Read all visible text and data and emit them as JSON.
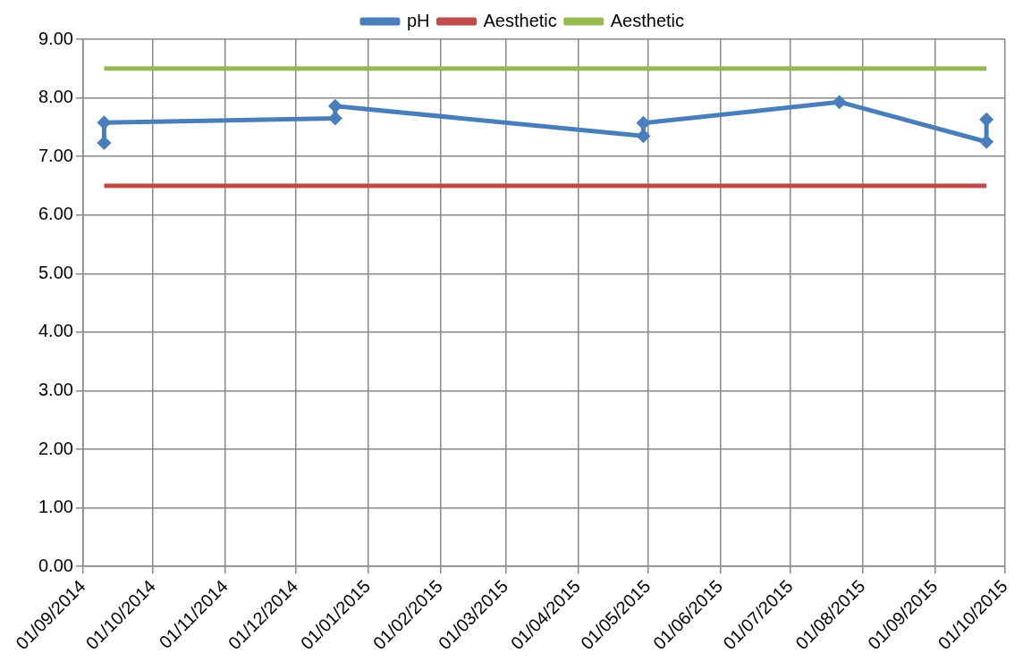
{
  "chart_data": {
    "type": "line",
    "x": [
      "2014-09-10",
      "2014-09-10",
      "2014-12-18",
      "2014-12-18",
      "2015-04-29",
      "2015-04-29",
      "2015-07-22",
      "2015-09-23",
      "2015-09-23"
    ],
    "series": [
      {
        "name": "pH",
        "color": "#4a7ebb",
        "values": [
          7.23,
          7.58,
          7.65,
          7.86,
          7.35,
          7.57,
          7.93,
          7.25,
          7.63
        ],
        "marker": "diamond"
      },
      {
        "name": "Aesthetic",
        "color": "#be4b48",
        "x": [
          "2014-09-10",
          "2015-09-23"
        ],
        "values": [
          6.5,
          6.5
        ],
        "marker": "none"
      },
      {
        "name": "Aesthetic",
        "color": "#98b954",
        "x": [
          "2014-09-10",
          "2015-09-23"
        ],
        "values": [
          8.5,
          8.5
        ],
        "marker": "none"
      }
    ],
    "xlim": [
      "2014-09-01",
      "2015-10-01"
    ],
    "xticks": [
      {
        "value": "2014-09-01",
        "label": "01/09/2014"
      },
      {
        "value": "2014-10-01",
        "label": "01/10/2014"
      },
      {
        "value": "2014-11-01",
        "label": "01/11/2014"
      },
      {
        "value": "2014-12-01",
        "label": "01/12/2014"
      },
      {
        "value": "2015-01-01",
        "label": "01/01/2015"
      },
      {
        "value": "2015-02-01",
        "label": "01/02/2015"
      },
      {
        "value": "2015-03-01",
        "label": "01/03/2015"
      },
      {
        "value": "2015-04-01",
        "label": "01/04/2015"
      },
      {
        "value": "2015-05-01",
        "label": "01/05/2015"
      },
      {
        "value": "2015-06-01",
        "label": "01/06/2015"
      },
      {
        "value": "2015-07-01",
        "label": "01/07/2015"
      },
      {
        "value": "2015-08-01",
        "label": "01/08/2015"
      },
      {
        "value": "2015-09-01",
        "label": "01/09/2015"
      },
      {
        "value": "2015-10-01",
        "label": "01/10/2015"
      }
    ],
    "ylim": [
      0,
      9
    ],
    "yticks": [
      {
        "value": 0,
        "label": "0.00"
      },
      {
        "value": 1,
        "label": "1.00"
      },
      {
        "value": 2,
        "label": "2.00"
      },
      {
        "value": 3,
        "label": "3.00"
      },
      {
        "value": 4,
        "label": "4.00"
      },
      {
        "value": 5,
        "label": "5.00"
      },
      {
        "value": 6,
        "label": "6.00"
      },
      {
        "value": 7,
        "label": "7.00"
      },
      {
        "value": 8,
        "label": "8.00"
      },
      {
        "value": 9,
        "label": "9.00"
      }
    ],
    "grid": true,
    "legend": "top",
    "line_style": "solid"
  }
}
